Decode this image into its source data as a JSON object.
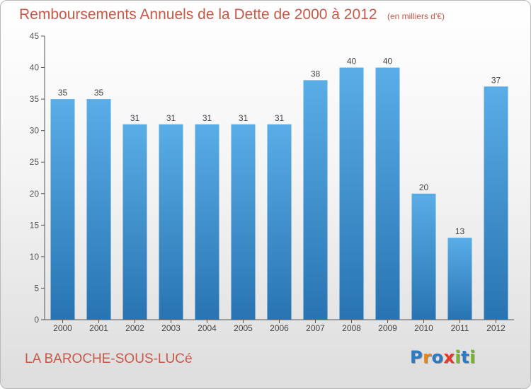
{
  "chart_data": {
    "type": "bar",
    "title": "Remboursements Annuels de la Dette de 2000 à 2012",
    "unit_note": "(en milliers d'€)",
    "categories": [
      "2000",
      "2001",
      "2002",
      "2003",
      "2004",
      "2005",
      "2006",
      "2007",
      "2008",
      "2009",
      "2010",
      "2011",
      "2012"
    ],
    "values": [
      35,
      35,
      31,
      31,
      31,
      31,
      31,
      38,
      40,
      40,
      20,
      13,
      37
    ],
    "ylim": [
      0,
      45
    ],
    "yticks": [
      0,
      5,
      10,
      15,
      20,
      25,
      30,
      35,
      40,
      45
    ],
    "grid": false,
    "data_labels": true,
    "bar_color_top": "#5aade6",
    "bar_color_bottom": "#2874b2"
  },
  "town_name": "LA BAROCHE-SOUS-LUCé",
  "logo": {
    "text": "Proxiti",
    "letter_colors": [
      "#2b7bc6",
      "#e8861c",
      "#2b7bc6",
      "#e8392b",
      "#7ab52d",
      "#2b7bc6",
      "#7ab52d"
    ]
  },
  "colors": {
    "accent_text": "#c8584a",
    "axis": "#555555"
  }
}
